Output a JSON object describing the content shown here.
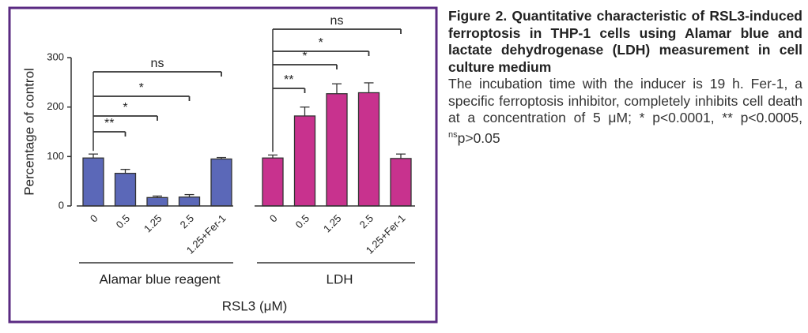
{
  "chart_data": {
    "type": "bar",
    "ylabel": "Percentage of control",
    "xlabel": "RSL3 (μM)",
    "ylim": [
      0,
      300
    ],
    "yticks": [
      0,
      100,
      200,
      300
    ],
    "categories": [
      "0",
      "0.5",
      "1.25",
      "2.5",
      "1.25+Fer-1"
    ],
    "groups": [
      {
        "name": "Alamar blue reagent",
        "color": "#5b68b8",
        "values": [
          97,
          66,
          17,
          18,
          95
        ],
        "errors": [
          8,
          8,
          3,
          5,
          3
        ],
        "annotations": [
          "**",
          "*",
          "*",
          "ns"
        ]
      },
      {
        "name": "LDH",
        "color": "#c8328e",
        "values": [
          97,
          182,
          227,
          229,
          96
        ],
        "errors": [
          6,
          18,
          20,
          20,
          9
        ],
        "annotations": [
          "**",
          "*",
          "*",
          "ns"
        ]
      }
    ]
  },
  "caption": {
    "title": "Figure 2. Quantitative characteristic of RSL3-induced ferroptosis in THP-1 cells using Alamar blue and lactate dehydrogenase (LDH) measurement in cell culture medium",
    "body": [
      "The incubation time with the inducer is 19 h. Fer-1, a specific ferroptosis inhibitor, completely inhibits cell death at a concentration of 5 μM; * p<0.0001, ** p<0.0005, ",
      "ns",
      "p>0.05"
    ]
  }
}
